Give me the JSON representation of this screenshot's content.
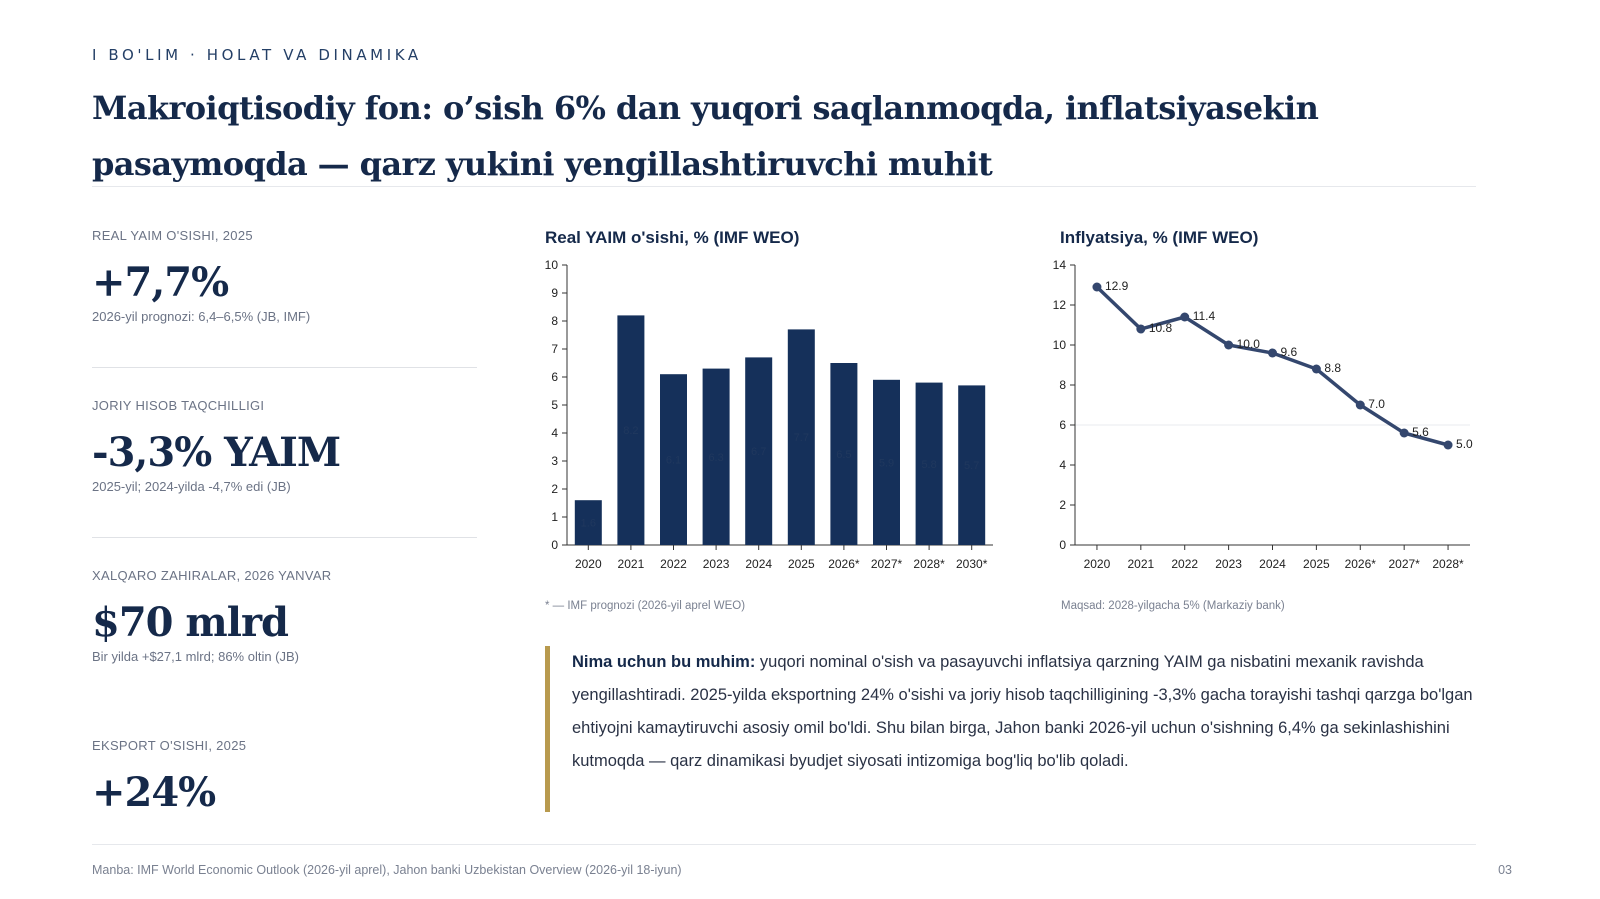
{
  "header": {
    "eyebrow": "I BO'LIM · HOLAT VA DINAMIKA",
    "title": "Makroiqtisodiy fon: o’sish 6% dan yuqori saqlanmoqda, inflatsiyasekin pasaymoqda — qarz yukini yengillashtiruvchi muhit"
  },
  "kpis": [
    {
      "label": "REAL YAIM O'SISHI, 2025",
      "value": "+7,7%",
      "note": "2026-yil prognozi: 6,4–6,5% (JB, IMF)"
    },
    {
      "label": "JORIY HISOB TAQCHILLIGI",
      "value": "-3,3% YAIM",
      "note": "2025-yil; 2024-yilda -4,7% edi (JB)"
    },
    {
      "label": "XALQARO ZAHIRALAR, 2026 YANVAR",
      "value": "$70 mlrd",
      "note": "Bir yilda +$27,1 mlrd; 86% oltin (JB)"
    },
    {
      "label": "EKSPORT O'SISHI, 2025",
      "value": "+24%",
      "note": ""
    }
  ],
  "charts": {
    "gdp_note": "* — IMF prognozi (2026-yil aprel WEO)",
    "inflation_note": "Maqsad: 2028-yilgacha 5% (Markaziy bank)"
  },
  "chart_data": [
    {
      "type": "bar",
      "title": "Real YAIM o'sishi, % (IMF WEO)",
      "categories": [
        "2020",
        "2021",
        "2022",
        "2023",
        "2024",
        "2025",
        "2026*",
        "2027*",
        "2028*",
        "2030*"
      ],
      "values": [
        1.6,
        8.2,
        6.1,
        6.3,
        6.7,
        7.7,
        6.5,
        5.9,
        5.8,
        5.7
      ],
      "data_labels": [
        "1.6",
        "8.2",
        "6.1",
        "6.3",
        "6.7",
        "7.7",
        "6.5",
        "5.9",
        "5.8",
        "5.7"
      ],
      "ylim": [
        0,
        10
      ],
      "yticks": [
        0,
        1,
        2,
        3,
        4,
        5,
        6,
        7,
        8,
        9,
        10
      ],
      "bar_color": "#15305a",
      "grid": false
    },
    {
      "type": "line",
      "title": "Inflyatsiya, % (IMF WEO)",
      "x": [
        "2020",
        "2021",
        "2022",
        "2023",
        "2024",
        "2025",
        "2026*",
        "2027*",
        "2028*"
      ],
      "values": [
        12.9,
        10.8,
        11.4,
        10.0,
        9.6,
        8.8,
        7.0,
        5.6,
        5.0
      ],
      "data_labels": [
        "12.9",
        "10.8",
        "11.4",
        "10.0",
        "9.6",
        "8.8",
        "7.0",
        "5.6",
        "5.0"
      ],
      "ylim": [
        0,
        14
      ],
      "yticks": [
        0,
        2,
        4,
        6,
        8,
        10,
        12,
        14
      ],
      "reference_line": 6,
      "line_color": "#34476e",
      "grid": false
    }
  ],
  "callout": {
    "lead": "Nima uchun bu muhim:",
    "text": " yuqori nominal o'sish va pasayuvchi inflatsiya qarzning YAIM ga nisbatini mexanik ravishda yengillashtiradi. 2025-yilda eksportning 24% o'sishi va joriy hisob taqchilligining -3,3% gacha torayishi tashqi qarzga bo'lgan ehtiyojni kamaytiruvchi asosiy omil bo'ldi. Shu bilan birga, Jahon banki 2026-yil uchun o'sishning 6,4% ga sekinlashishini kutmoqda — qarz dinamikasi byudjet siyosati intizomiga bog'liq bo'lib qoladi."
  },
  "footer": {
    "source": "Manba: IMF World Economic Outlook (2026-yil aprel), Jahon banki Uzbekistan Overview (2026-yil 18-iyun)",
    "page": "03"
  }
}
